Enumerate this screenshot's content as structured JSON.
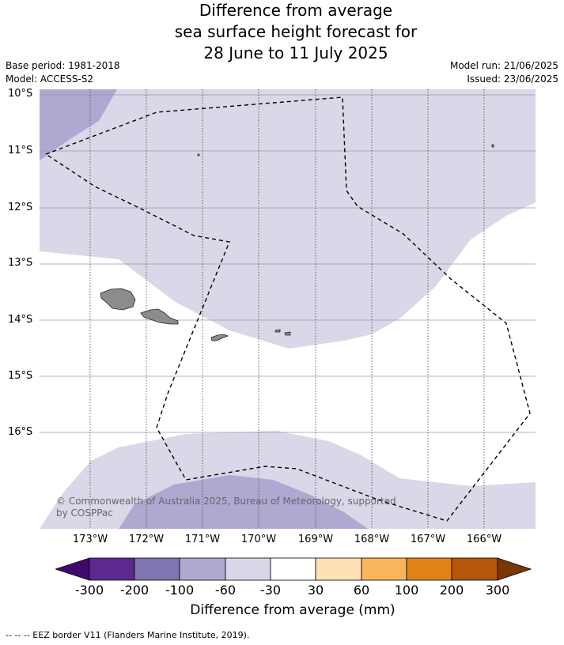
{
  "title": {
    "line1": "Difference from average",
    "line2": "sea surface height forecast for",
    "line3": "28 June to 11 July 2025"
  },
  "meta": {
    "base_period": "Base period: 1981-2018",
    "model": "Model: ACCESS-S2",
    "model_run": "Model run: 21/06/2025",
    "issued": "Issued: 23/06/2025"
  },
  "map": {
    "lat_labels": [
      "10°S",
      "11°S",
      "12°S",
      "13°S",
      "14°S",
      "15°S",
      "16°S"
    ],
    "lon_labels": [
      "173°W",
      "172°W",
      "171°W",
      "170°W",
      "169°W",
      "168°W",
      "167°W",
      "166°W"
    ],
    "copyright_line1": "© Commonwealth of Australia 2025, Bureau of Meteorology, supported",
    "copyright_line2": "by COSPPac",
    "colors": {
      "light_band": "#d8d8e8",
      "mid_band": "#afa8d0",
      "land": "#8c8c8c",
      "ocean_neutral": "#ffffff"
    }
  },
  "colorbar": {
    "ticks": [
      "-300",
      "-200",
      "-100",
      "-60",
      "-30",
      "30",
      "60",
      "100",
      "200",
      "300"
    ],
    "colors": [
      "#3f0a6c",
      "#5c2a8f",
      "#8074b2",
      "#afa8d0",
      "#d8d8e8",
      "#ffffff",
      "#fde0b5",
      "#f9b55a",
      "#e2831a",
      "#b5560a",
      "#7a3603"
    ],
    "label": "Difference from average (mm)"
  },
  "footnote": "--  --  -- EEZ border V11 (Flanders Marine Institute, 2019)."
}
